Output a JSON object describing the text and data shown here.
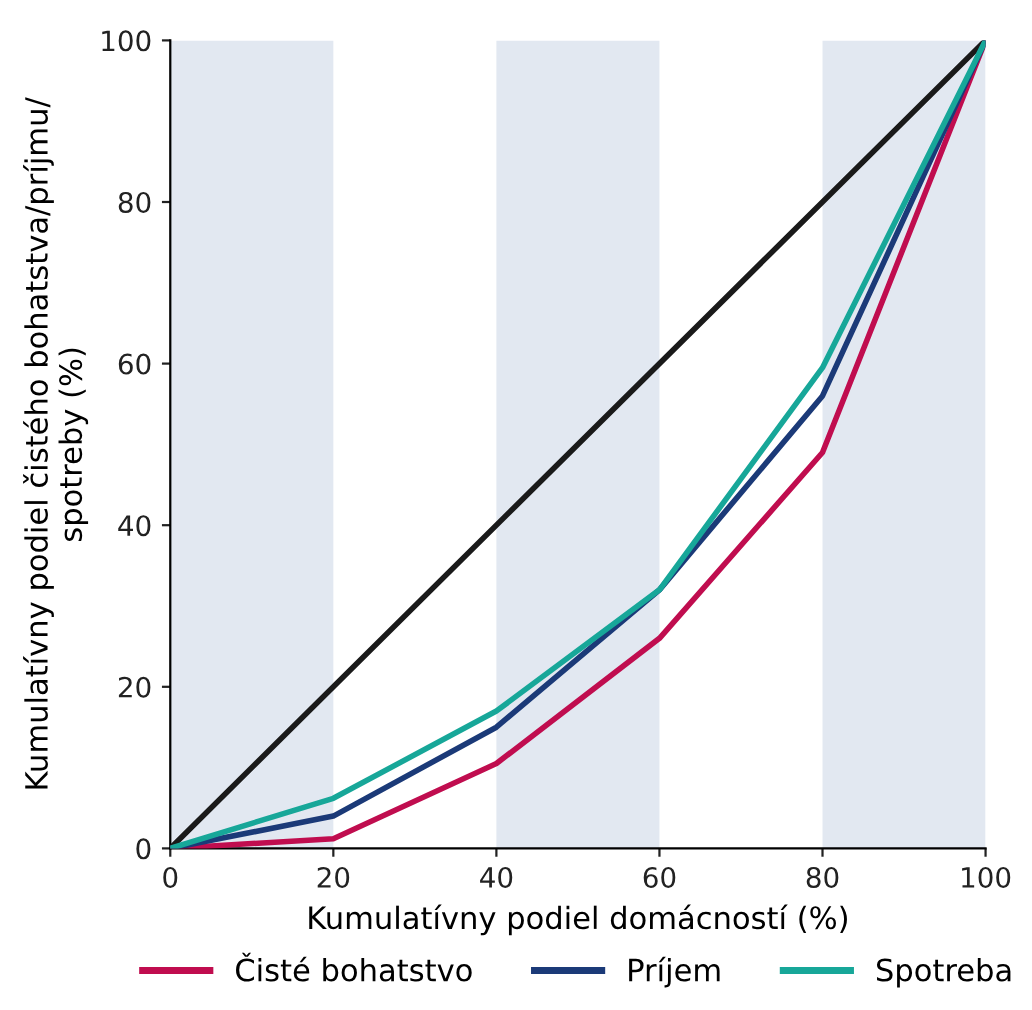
{
  "chart_data": {
    "type": "line",
    "xlabel": "Kumulatívny podiel domácností (%)",
    "ylabel": "Kumulatívny podiel čistého bohatstva/príjmu/\nspotreby (%)",
    "x": [
      0,
      20,
      40,
      60,
      80,
      100
    ],
    "series": [
      {
        "color": "#1a1a1a",
        "x": [
          0,
          100
        ],
        "values": [
          0,
          100
        ]
      },
      {
        "name": "Čisté bohatstvo",
        "color": "#c00d4f",
        "values": [
          0,
          1.2,
          10.5,
          26,
          49,
          100
        ]
      },
      {
        "name": "Príjem",
        "color": "#1b3a78",
        "values": [
          0,
          4,
          15,
          32,
          56,
          100
        ]
      },
      {
        "name": "Spotreba",
        "color": "#17a799",
        "values": [
          0,
          6.2,
          17,
          32,
          59.5,
          100
        ]
      }
    ],
    "bands": [
      {
        "axis": "x",
        "from": 0,
        "to": 20,
        "color": "#e2e8f1"
      },
      {
        "axis": "x",
        "from": 40,
        "to": 60,
        "color": "#e2e8f1"
      },
      {
        "axis": "x",
        "from": 80,
        "to": 100,
        "color": "#e2e8f1"
      }
    ],
    "xlim": [
      0,
      100
    ],
    "ylim": [
      0,
      100
    ],
    "xticks": [
      0,
      20,
      40,
      60,
      80,
      100
    ],
    "yticks": [
      0,
      20,
      40,
      60,
      80,
      100
    ],
    "grid": false,
    "legend": "bottom",
    "marker": "none",
    "line_style": "solid"
  }
}
